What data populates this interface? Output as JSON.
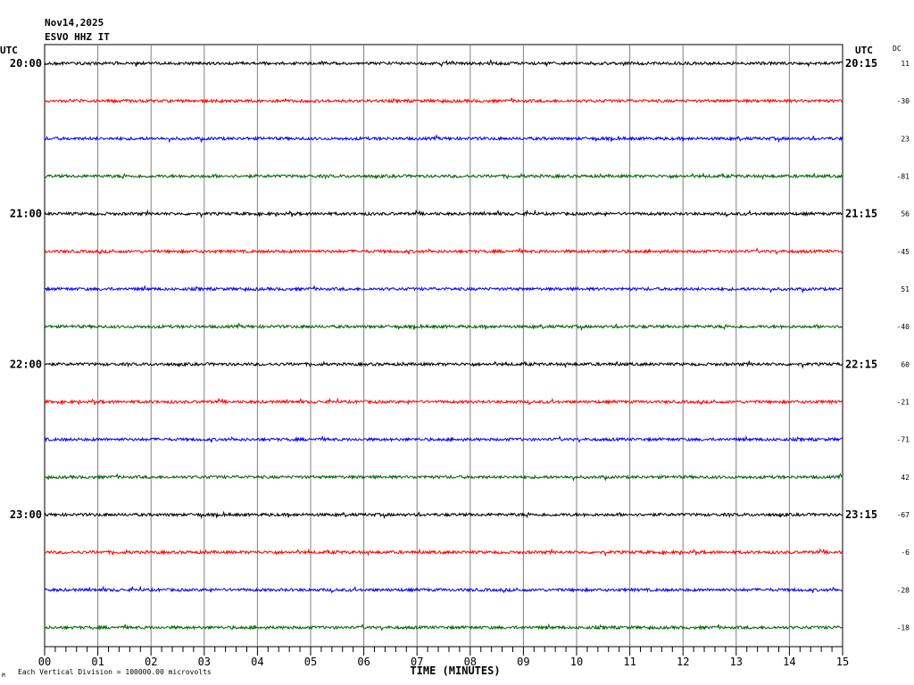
{
  "header": {
    "date": "Nov14,2025",
    "station": "ESVO HHZ IT",
    "utc_left": "UTC",
    "utc_right": "UTC",
    "dc_label": "DC"
  },
  "footer": {
    "division_note": "Each Vertical Division = 100000.00 microvolts",
    "mark": "M"
  },
  "chart_data": {
    "type": "line",
    "title": "ESVO HHZ IT",
    "date": "Nov14,2025",
    "xlabel": "TIME (MINUTES)",
    "xlim": [
      0,
      15
    ],
    "x_ticks": [
      "00",
      "01",
      "02",
      "03",
      "04",
      "05",
      "06",
      "07",
      "08",
      "09",
      "10",
      "11",
      "12",
      "13",
      "14",
      "15"
    ],
    "left_hour_labels": [
      "20:00",
      "21:00",
      "22:00",
      "23:00"
    ],
    "right_hour_labels": [
      "20:15",
      "21:15",
      "22:15",
      "23:15"
    ],
    "traces_per_hour": 4,
    "trace_colors": [
      "#000000",
      "#ff0000",
      "#0000ff",
      "#006400"
    ],
    "dc_offsets": [
      11,
      -30,
      23,
      -81,
      56,
      -45,
      51,
      -40,
      60,
      -21,
      -71,
      42,
      -67,
      -6,
      -28,
      -18
    ],
    "vertical_division_microvolts": 100000.0,
    "grid": true
  }
}
